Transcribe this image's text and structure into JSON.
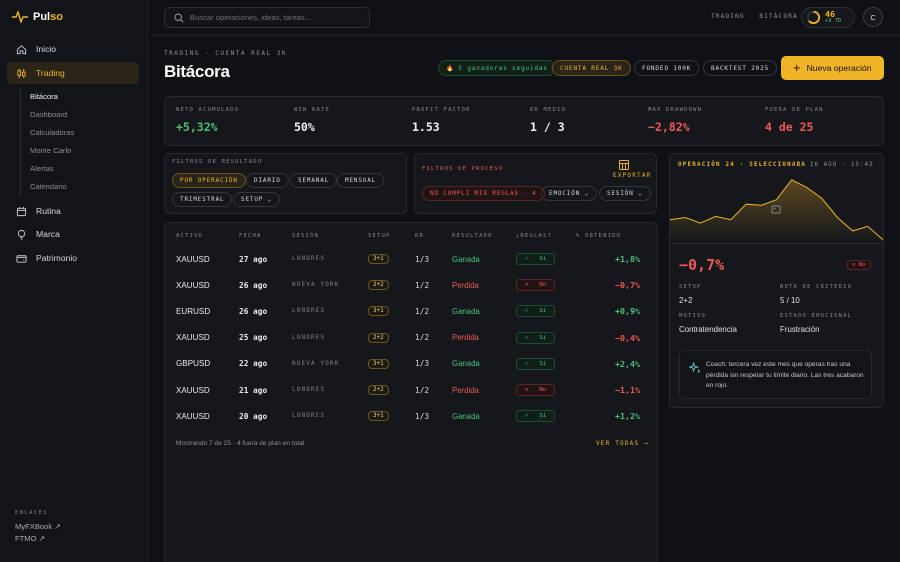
{
  "app": {
    "name_a": "Pul",
    "name_b": "so",
    "accent": "#f0b429"
  },
  "nav": [
    {
      "label": "Inicio",
      "icon": "home-icon"
    },
    {
      "label": "Trading",
      "icon": "candles-icon",
      "active": true
    },
    {
      "label": "Rutina",
      "icon": "calendar-icon"
    },
    {
      "label": "Marca",
      "icon": "bulb-icon"
    },
    {
      "label": "Patrimonio",
      "icon": "wallet-icon"
    }
  ],
  "subnav": [
    "Bitácora",
    "Dashboard",
    "Calculadoras",
    "Monte Carlo",
    "Alertas",
    "Calendario"
  ],
  "links": {
    "heading": "ENLACES",
    "items": [
      "MyFXBook ↗",
      "FTMO ↗"
    ]
  },
  "topbar": {
    "search_placeholder": "Buscar operaciones, ideas, tareas...",
    "crumb": "TRADING · BITÁCORA",
    "streak_value": "46",
    "streak_delta": "+3 7D",
    "avatar": "C"
  },
  "header": {
    "crumb": "TRADING · CUENTA REAL 3K",
    "title": "Bitácora",
    "streak_chip": "5 ganadoras seguidas",
    "accounts": [
      "CUENTA REAL 3K",
      "FONDEO 100K",
      "BACKTEST 2025"
    ],
    "new_button": "Nueva operación"
  },
  "stats": [
    {
      "label": "NETO ACUMULADO",
      "value": "+5,32%",
      "tone": "pos"
    },
    {
      "label": "WIN RATE",
      "value": "50%",
      "tone": "wht"
    },
    {
      "label": "PROFIT FACTOR",
      "value": "1.53",
      "tone": "wht"
    },
    {
      "label": "RR MEDIO",
      "value": "1 / 3",
      "tone": "wht"
    },
    {
      "label": "MAX DRAWDOWN",
      "value": "−2,82%",
      "tone": "neg"
    },
    {
      "label": "FUERA DE PLAN",
      "value": "4 de 25",
      "tone": "neg"
    }
  ],
  "filters": {
    "result_label": "FILTROS DE RESULTADO",
    "result": [
      "POR OPERACIÓN",
      "DIARIO",
      "SEMANAL",
      "MENSUAL",
      "TRIMESTRAL",
      "SETUP ⌄"
    ],
    "process_label": "FILTROS DE PROCESO",
    "process": [
      "NO CUMPLÍ MIS REGLAS · 4",
      "EMOCIÓN ⌄",
      "SESIÓN ⌄"
    ],
    "export": "EXPORTAR"
  },
  "table": {
    "headers": [
      "ACTIVO",
      "FECHA",
      "SESIÓN",
      "SETUP",
      "RR",
      "RESULTADO",
      "¿REGLAS?",
      "% OBTENIDO"
    ],
    "rows": [
      {
        "asset": "XAUUSD",
        "date": "27 ago",
        "session": "LONDRES",
        "setup": "3+1",
        "rr": "1/3",
        "result": "Ganada",
        "rules": "Sí",
        "pct": "+1,8%",
        "win": true
      },
      {
        "asset": "XAUUSD",
        "date": "26 ago",
        "session": "NUEVA YORK",
        "setup": "2+2",
        "rr": "1/2",
        "result": "Perdida",
        "rules": "No",
        "pct": "−0,7%",
        "win": false
      },
      {
        "asset": "EURUSD",
        "date": "26 ago",
        "session": "LONDRES",
        "setup": "3+1",
        "rr": "1/2",
        "result": "Ganada",
        "rules": "Sí",
        "pct": "+0,9%",
        "win": true
      },
      {
        "asset": "XAUUSD",
        "date": "25 ago",
        "session": "LONDRES",
        "setup": "2+2",
        "rr": "1/2",
        "result": "Perdida",
        "rules": "Sí",
        "pct": "−0,4%",
        "win": false
      },
      {
        "asset": "GBPUSD",
        "date": "22 ago",
        "session": "NUEVA YORK",
        "setup": "3+1",
        "rr": "1/3",
        "result": "Ganada",
        "rules": "Sí",
        "pct": "+2,4%",
        "win": true
      },
      {
        "asset": "XAUUSD",
        "date": "21 ago",
        "session": "LONDRES",
        "setup": "2+2",
        "rr": "1/2",
        "result": "Perdida",
        "rules": "No",
        "pct": "−1,1%",
        "win": false
      },
      {
        "asset": "XAUUSD",
        "date": "20 ago",
        "session": "LONDRES",
        "setup": "3+1",
        "rr": "1/3",
        "result": "Ganada",
        "rules": "Sí",
        "pct": "+1,2%",
        "win": true
      }
    ],
    "footer": "Mostrando 7 de 25 · 4 fuera de plan en total",
    "see_all": "VER TODAS →"
  },
  "detail": {
    "heading": "OPERACIÓN 24 · SELECCIONADA",
    "time": "26 AGO · 15:42",
    "result": "−0,7%",
    "rules_badge": "No",
    "fields": [
      {
        "label": "SETUP",
        "value": "2+2"
      },
      {
        "label": "NOTA DE CRITERIO",
        "value": "5 / 10"
      },
      {
        "label": "MOTIVO",
        "value": "Contratendencia"
      },
      {
        "label": "ESTADO EMOCIONAL",
        "value": "Frustración"
      }
    ],
    "coach": "Coach: tercera vez este mes que operas tras una pérdida sin respetar tu límite diario. Las tres acabaron en rojo."
  },
  "chart_data": {
    "type": "area",
    "values": [
      20,
      22,
      17,
      23,
      20,
      34,
      33,
      38,
      56,
      49,
      39,
      22,
      10,
      14,
      2
    ]
  }
}
